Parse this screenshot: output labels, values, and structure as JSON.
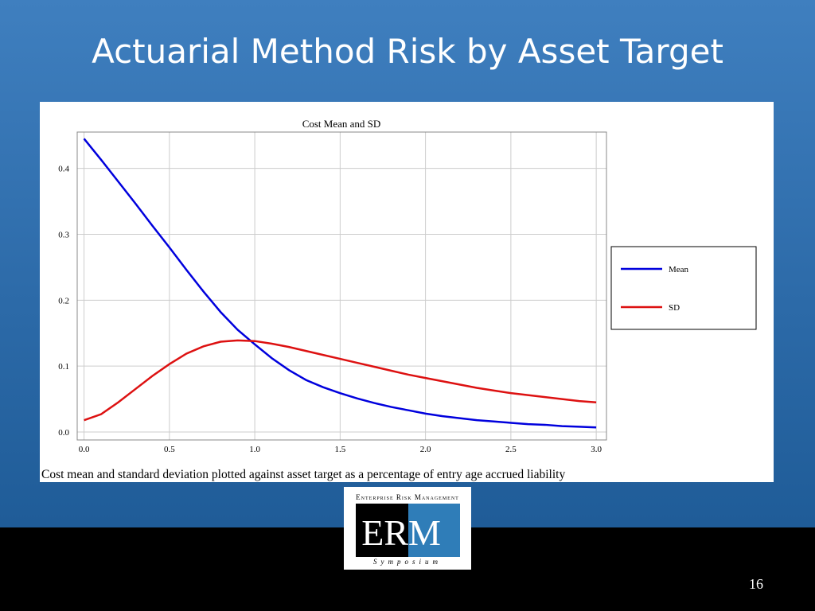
{
  "slide_title": "Actuarial Method Risk by Asset Target",
  "chart_data": {
    "type": "line",
    "title": "Cost Mean and SD",
    "x": [
      0,
      0.1,
      0.2,
      0.3,
      0.4,
      0.5,
      0.6,
      0.7,
      0.8,
      0.9,
      1.0,
      1.1,
      1.2,
      1.3,
      1.4,
      1.5,
      1.6,
      1.7,
      1.8,
      1.9,
      2.0,
      2.1,
      2.2,
      2.3,
      2.4,
      2.5,
      2.6,
      2.7,
      2.8,
      2.9,
      3.0
    ],
    "series": [
      {
        "name": "Mean",
        "color": "#0000dd",
        "values": [
          0.445,
          0.413,
          0.38,
          0.347,
          0.313,
          0.28,
          0.246,
          0.213,
          0.182,
          0.155,
          0.133,
          0.112,
          0.094,
          0.079,
          0.068,
          0.059,
          0.051,
          0.044,
          0.038,
          0.033,
          0.028,
          0.024,
          0.021,
          0.018,
          0.016,
          0.014,
          0.012,
          0.011,
          0.009,
          0.008,
          0.007
        ]
      },
      {
        "name": "SD",
        "color": "#dd1111",
        "values": [
          0.018,
          0.027,
          0.045,
          0.065,
          0.085,
          0.103,
          0.119,
          0.13,
          0.137,
          0.139,
          0.138,
          0.134,
          0.129,
          0.123,
          0.117,
          0.111,
          0.105,
          0.099,
          0.093,
          0.087,
          0.082,
          0.077,
          0.072,
          0.067,
          0.063,
          0.059,
          0.056,
          0.053,
          0.05,
          0.047,
          0.045
        ]
      }
    ],
    "xlim": [
      -0.04,
      3.06
    ],
    "ylim": [
      -0.012,
      0.455
    ],
    "xticks": [
      {
        "value": 0,
        "label": "0.0"
      },
      0.5,
      {
        "value": 1,
        "label": "1.0"
      },
      1.5,
      {
        "value": 2,
        "label": "2.0"
      },
      2.5,
      {
        "value": 3,
        "label": "3.0"
      }
    ],
    "yticks": [
      {
        "value": 0,
        "label": "0.0"
      },
      0.1,
      0.2,
      0.3,
      0.4
    ],
    "grid": true,
    "legend": "right"
  },
  "caption": "Cost mean and standard deviation plotted against asset target as a percentage of entry age accrued liability",
  "logo": {
    "top": "Enterprise Risk Management",
    "main_left": "ER",
    "main_right": "M",
    "bottom": "Symposium"
  },
  "page_number": "16"
}
